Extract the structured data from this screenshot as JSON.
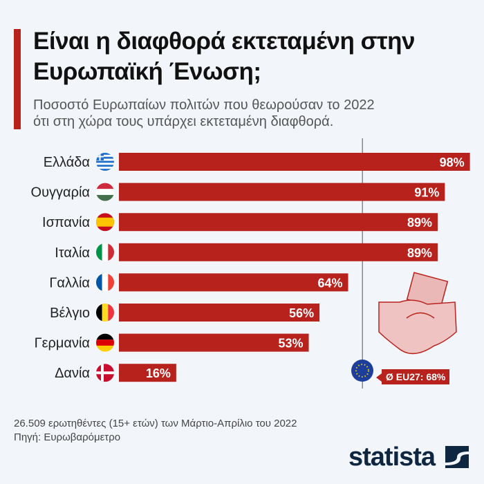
{
  "header": {
    "title": "Είναι η διαφθορά εκτεταμένη στην Ευρωπαϊκή Ένωση;",
    "subtitle_line1": "Ποσοστό Ευρωπαίων πολιτών που θεωρούσαν το 2022",
    "subtitle_line2": "ότι στη χώρα τους υπάρχει εκτεταμένη διαφθορά."
  },
  "chart_data": {
    "type": "bar",
    "orientation": "horizontal",
    "categories": [
      "Ελλάδα",
      "Ουγγαρία",
      "Ισπανία",
      "Ιταλία",
      "Γαλλία",
      "Βέλγιο",
      "Γερμανία",
      "Δανία"
    ],
    "values": [
      98,
      91,
      89,
      89,
      64,
      56,
      53,
      16
    ],
    "value_labels": [
      "98%",
      "91%",
      "89%",
      "89%",
      "64%",
      "56%",
      "53%",
      "16%"
    ],
    "unit": "%",
    "xlim": [
      0,
      100
    ],
    "reference_line": {
      "value": 68,
      "label": "Ø EU27: 68%"
    },
    "bar_color": "#b8221d",
    "flags": [
      "greece",
      "hungary",
      "spain",
      "italy",
      "france",
      "belgium",
      "germany",
      "denmark"
    ]
  },
  "footer": {
    "note": "26.509 ερωτηθέντες (15+ ετών) των Μάρτιο-Απρίλιο του 2022",
    "source": "Πηγή: Ευρωβαρόμετρο"
  },
  "logo": {
    "text": "statista"
  }
}
